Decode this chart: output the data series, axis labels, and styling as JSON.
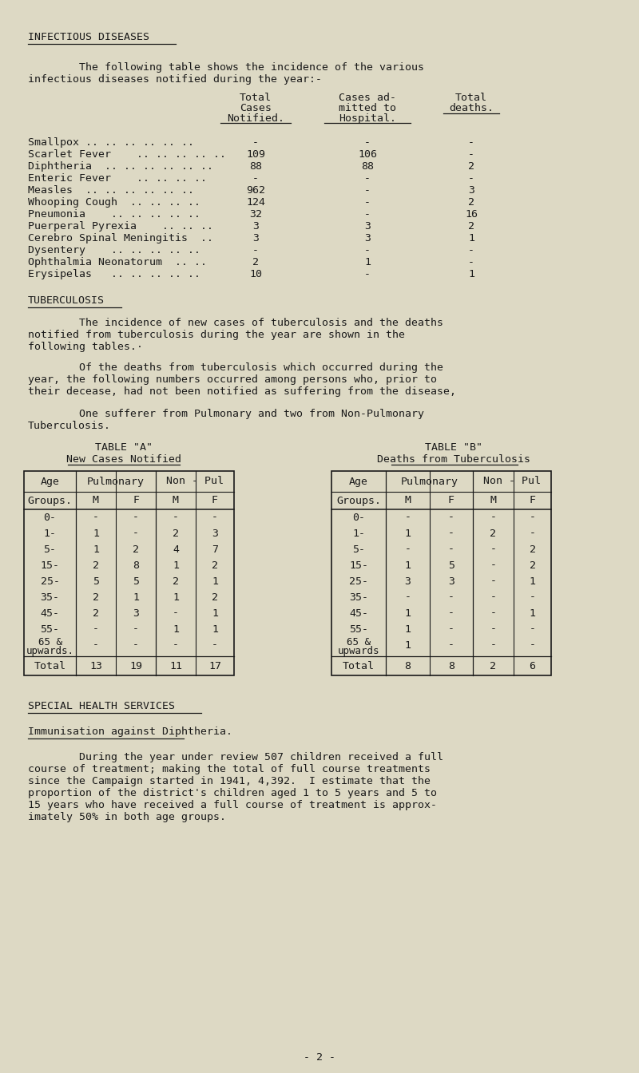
{
  "bg_color": "#ddd9c4",
  "text_color": "#1a1a1a",
  "title1": "INFECTIOUS DISEASES",
  "title2": "TUBERCULOSIS",
  "title3": "SPECIAL HEALTH SERVICES",
  "subtitle3": "Immunisation against Diphtheria.",
  "diseases": [
    [
      "Smallpox .. .. .. .. .. ..",
      "-",
      "-",
      "-"
    ],
    [
      "Scarlet Fever    .. .. .. .. ..",
      "109",
      "106",
      "-"
    ],
    [
      "Diphtheria  .. .. .. .. .. ..",
      "88",
      "88",
      "2"
    ],
    [
      "Enteric Fever    .. .. .. ..",
      "-",
      "-",
      "-"
    ],
    [
      "Measles  .. .. .. .. .. ..",
      "962",
      "-",
      "3"
    ],
    [
      "Whooping Cough  .. .. .. ..",
      "124",
      "-",
      "2"
    ],
    [
      "Pneumonia    .. .. .. .. ..",
      "32",
      "-",
      "16"
    ],
    [
      "Puerperal Pyrexia    .. .. ..",
      "3",
      "3",
      "2"
    ],
    [
      "Cerebro Spinal Meningitis  ..",
      "3",
      "3",
      "1"
    ],
    [
      "Dysentery    .. .. .. .. ..",
      "-",
      "-",
      "-"
    ],
    [
      "Ophthalmia Neonatorum  .. ..",
      "2",
      "1",
      "-"
    ],
    [
      "Erysipelas   .. .. .. .. ..",
      "10",
      "-",
      "1"
    ]
  ],
  "tableA_ages": [
    "0-",
    "1-",
    "5-",
    "15-",
    "25-",
    "35-",
    "45-",
    "55-",
    "65 &"
  ],
  "tableA_ages2": [
    "",
    "",
    "",
    "",
    "",
    "",
    "",
    "",
    "upwards."
  ],
  "tableA_PM": [
    "-",
    "1",
    "1",
    "2",
    "5",
    "2",
    "2",
    "-",
    "-"
  ],
  "tableA_PF": [
    "-",
    "-",
    "2",
    "8",
    "5",
    "1",
    "3",
    "-",
    "-"
  ],
  "tableA_NM": [
    "-",
    "2",
    "4",
    "1",
    "2",
    "1",
    "-",
    "1",
    "-"
  ],
  "tableA_NF": [
    "-",
    "3",
    "7",
    "2",
    "1",
    "2",
    "1",
    "1",
    "-"
  ],
  "tableA_tot": [
    "13",
    "19",
    "11",
    "17"
  ],
  "tableB_ages": [
    "0-",
    "1-",
    "5-",
    "15-",
    "25-",
    "35-",
    "45-",
    "55-",
    "65 &"
  ],
  "tableB_ages2": [
    "",
    "",
    "",
    "",
    "",
    "",
    "",
    "",
    "upwards"
  ],
  "tableB_PM": [
    "-",
    "1",
    "-",
    "1",
    "3",
    "-",
    "1",
    "1",
    "1"
  ],
  "tableB_PF": [
    "-",
    "-",
    "-",
    "5",
    "3",
    "-",
    "-",
    "-",
    "-"
  ],
  "tableB_NM": [
    "-",
    "2",
    "-",
    "-",
    "-",
    "-",
    "-",
    "-",
    "-"
  ],
  "tableB_NF": [
    "-",
    "-",
    "2",
    "2",
    "1",
    "-",
    "1",
    "-",
    "-"
  ],
  "tableB_tot": [
    "8",
    "8",
    "2",
    "6"
  ],
  "para5_lines": [
    "        During the year under review 507 children received a full",
    "course of treatment; making the total of full course treatments",
    "since the Campaign started in 1941, 4,392.  I estimate that the",
    "proportion of the district's children aged 1 to 5 years and 5 to",
    "15 years who have received a full course of treatment is approx-",
    "imately 50% in both age groups."
  ],
  "footer": "- 2 -"
}
